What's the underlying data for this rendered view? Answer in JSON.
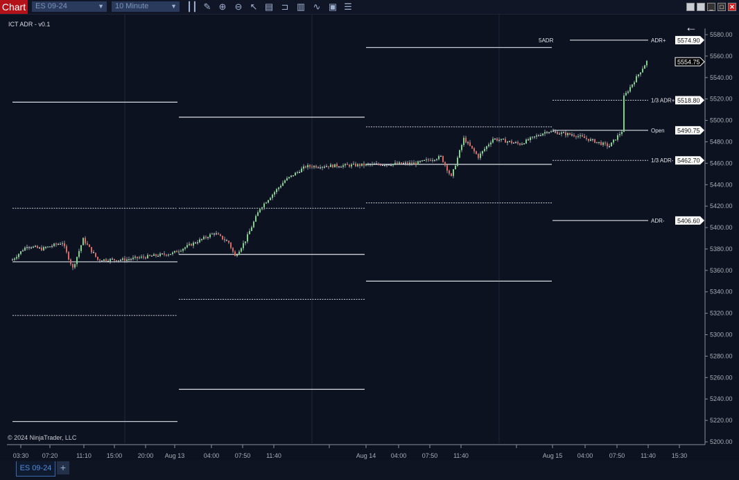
{
  "toolbar": {
    "chart_button": "Chart",
    "instrument": "ES 09-24",
    "interval": "10 Minute",
    "icons": [
      "bar-type-icon",
      "pencil-icon",
      "zoom-in-icon",
      "zoom-out-icon",
      "pointer-icon",
      "data-box-icon",
      "properties-icon",
      "indicators-icon",
      "strategies-icon",
      "templates-icon",
      "list-icon"
    ],
    "window_buttons": [
      "tile-icon",
      "tile-icon",
      "minimize-icon",
      "maximize-icon",
      "close-icon"
    ]
  },
  "indicator_label": "ICT ADR - v0.1",
  "copyright": "© 2024 NinjaTrader, LLC",
  "bottom_tabs": {
    "active": "ES 09-24",
    "add": "+"
  },
  "colors": {
    "background": "#0d1220",
    "up": "#7fd38a",
    "down": "#e0675f",
    "level": "#c8ccd4",
    "close_button": "#d42020",
    "chart_button": "#b3121b"
  },
  "chart_data": {
    "type": "candlestick",
    "ylim": [
      5200,
      5580
    ],
    "y_ticks": [
      "5580.00",
      "5560.00",
      "5540.00",
      "5520.00",
      "5500.00",
      "5480.00",
      "5460.00",
      "5440.00",
      "5420.00",
      "5400.00",
      "5380.00",
      "5360.00",
      "5340.00",
      "5320.00",
      "5300.00",
      "5280.00",
      "5260.00",
      "5240.00",
      "5220.00",
      "5200.00"
    ],
    "x_ticks": [
      "03:30",
      "07:20",
      "11:10",
      "15:00",
      "20:00",
      "Aug 13",
      "04:00",
      "07:50",
      "11:40",
      "Aug 14",
      "04:00",
      "07:50",
      "11:40",
      "Aug 15",
      "04:00",
      "07:50",
      "11:40",
      "15:30"
    ],
    "current_price": "5554.75",
    "sessions": [
      {
        "levels": [
          {
            "price": 5517,
            "style": "solid"
          },
          {
            "price": 5418,
            "style": "dashed"
          },
          {
            "price": 5368,
            "style": "solid"
          },
          {
            "price": 5318,
            "style": "dashed"
          },
          {
            "price": 5219,
            "style": "solid"
          }
        ]
      },
      {
        "levels": [
          {
            "price": 5503,
            "style": "solid"
          },
          {
            "price": 5418,
            "style": "dashed"
          },
          {
            "price": 5375,
            "style": "solid"
          },
          {
            "price": 5333,
            "style": "dashed"
          },
          {
            "price": 5249,
            "style": "solid"
          }
        ]
      },
      {
        "levels": [
          {
            "price": 5568,
            "style": "solid"
          },
          {
            "price": 5494,
            "style": "dashed"
          },
          {
            "price": 5459,
            "style": "solid"
          },
          {
            "price": 5423,
            "style": "dashed"
          },
          {
            "price": 5350,
            "style": "solid"
          }
        ]
      },
      {
        "levels": [
          {
            "price": 5574.9,
            "style": "solid",
            "label": "ADR+",
            "left_label": "5ADR",
            "tag": "5574.90"
          },
          {
            "price": 5518.8,
            "style": "dashed",
            "label": "1/3 ADR+",
            "tag": "5518.80"
          },
          {
            "price": 5490.75,
            "style": "solid",
            "label": "Open",
            "tag": "5490.75"
          },
          {
            "price": 5462.7,
            "style": "dashed",
            "label": "1/3 ADR-",
            "tag": "5462.70"
          },
          {
            "price": 5406.6,
            "style": "solid",
            "label": "ADR-",
            "tag": "5406.60"
          }
        ]
      }
    ],
    "price_path": [
      [
        0,
        5370
      ],
      [
        7,
        5383
      ],
      [
        14,
        5380
      ],
      [
        24,
        5386
      ],
      [
        29,
        5362
      ],
      [
        34,
        5389
      ],
      [
        41,
        5370
      ],
      [
        54,
        5370
      ],
      [
        77,
        5376
      ],
      [
        91,
        5389
      ],
      [
        97,
        5395
      ],
      [
        104,
        5386
      ],
      [
        107,
        5373
      ],
      [
        112,
        5388
      ],
      [
        119,
        5418
      ],
      [
        131,
        5444
      ],
      [
        141,
        5457
      ],
      [
        161,
        5458
      ],
      [
        194,
        5460
      ],
      [
        206,
        5466
      ],
      [
        211,
        5447
      ],
      [
        217,
        5483
      ],
      [
        224,
        5466
      ],
      [
        231,
        5483
      ],
      [
        244,
        5478
      ],
      [
        257,
        5490
      ],
      [
        271,
        5486
      ],
      [
        287,
        5476
      ],
      [
        293,
        5490
      ],
      [
        294,
        5522
      ],
      [
        305,
        5555
      ]
    ]
  }
}
